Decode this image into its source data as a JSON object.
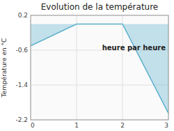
{
  "chart_data": {
    "type": "area",
    "title": "Evolution de la température",
    "y_label": "Température en °C",
    "annotation": "heure par heure",
    "x": [
      0,
      1,
      2,
      3
    ],
    "values": [
      -0.5,
      0.0,
      0.0,
      -2.05
    ],
    "color": "#5aafcc",
    "xlim": [
      0,
      3
    ],
    "ylim": [
      -2.2,
      0.2
    ],
    "xticks": [
      0,
      1,
      2,
      3
    ],
    "yticks": [
      -2.2,
      -1.4,
      -0.6,
      0.2
    ],
    "grid": true
  }
}
